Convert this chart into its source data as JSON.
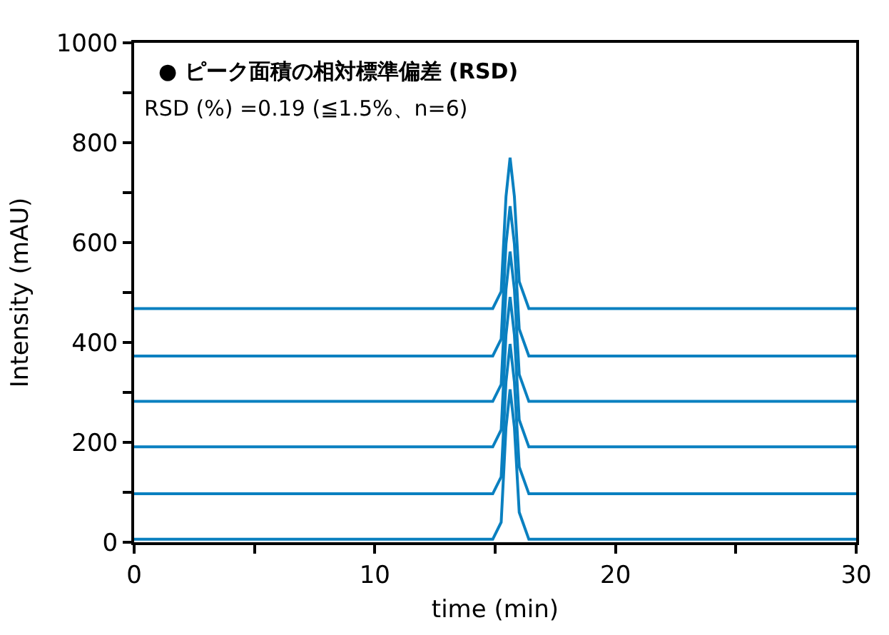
{
  "chart_data": {
    "type": "line",
    "xlabel": "time (min)",
    "ylabel": "Intensity (mAU)",
    "x": [
      0,
      14.9,
      15.25,
      15.45,
      15.62,
      15.8,
      16.0,
      16.4,
      30
    ],
    "series": [
      {
        "color": "#0a80c0",
        "values": [
          6,
          6,
          40,
          230,
          306,
          230,
          60,
          6,
          6
        ]
      },
      {
        "color": "#0a80c0",
        "values": [
          97,
          97,
          131,
          321,
          397,
          321,
          151,
          97,
          97
        ]
      },
      {
        "color": "#0a80c0",
        "values": [
          191,
          191,
          225,
          415,
          491,
          415,
          245,
          191,
          191
        ]
      },
      {
        "color": "#0a80c0",
        "values": [
          282,
          282,
          316,
          506,
          582,
          506,
          336,
          282,
          282
        ]
      },
      {
        "color": "#0a80c0",
        "values": [
          373,
          373,
          407,
          597,
          673,
          597,
          427,
          373,
          373
        ]
      },
      {
        "color": "#0a80c0",
        "values": [
          468,
          468,
          502,
          692,
          770,
          692,
          522,
          468,
          468
        ]
      }
    ],
    "xlim": [
      0,
      30
    ],
    "xticks": [
      0,
      {
        "value": 5,
        "label": null
      },
      10,
      {
        "value": 15,
        "label": null
      },
      20,
      {
        "value": 25,
        "label": null
      },
      30
    ],
    "ylim": [
      0,
      1000
    ],
    "yticks": [
      0,
      {
        "value": 100,
        "label": null
      },
      200,
      {
        "value": 300,
        "label": null
      },
      400,
      {
        "value": 500,
        "label": null
      },
      600,
      {
        "value": 700,
        "label": null
      },
      800,
      {
        "value": 900,
        "label": null
      },
      1000
    ],
    "annotations": [
      "● ピーク面積の相対標準偏差 (RSD)",
      "RSD (%) =0.19 (≦1.5%、n=6)"
    ],
    "marker": "none",
    "line_style": "solid"
  }
}
